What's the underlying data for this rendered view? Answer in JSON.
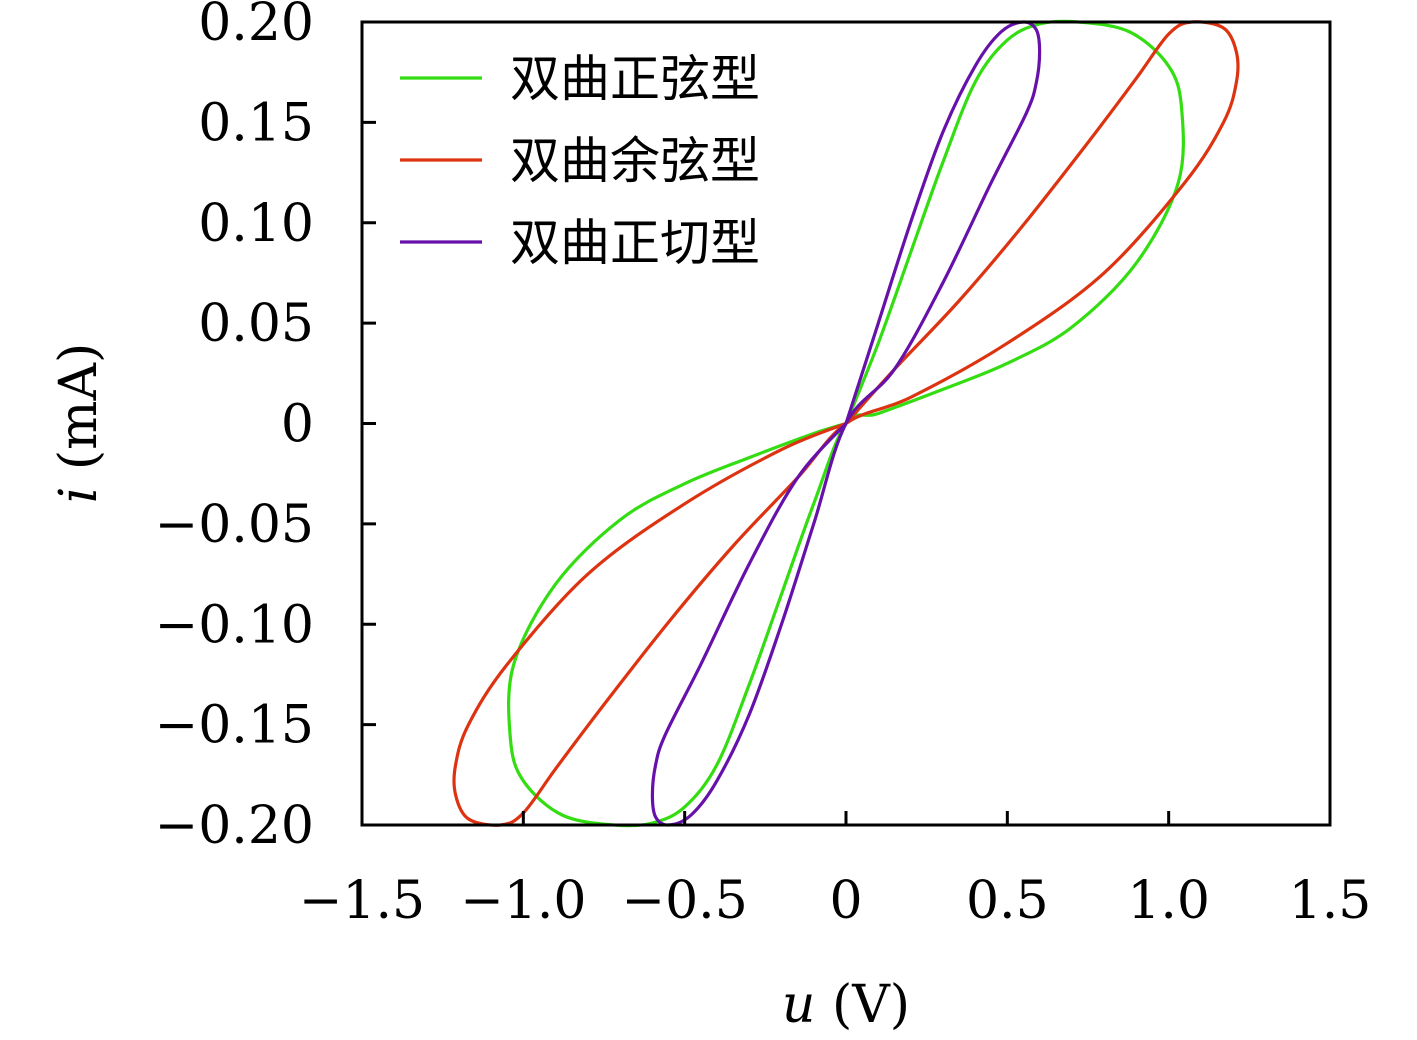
{
  "chart_data": {
    "type": "line",
    "xlabel_var": "u",
    "xlabel_unit": " (V)",
    "ylabel_var": "i",
    "ylabel_unit": " (mA)",
    "xlim": [
      -1.5,
      1.5
    ],
    "ylim": [
      -0.2,
      0.2
    ],
    "x_ticks": [
      -1.5,
      -1.0,
      -0.5,
      0,
      0.5,
      1.0,
      1.5
    ],
    "x_tick_labels": [
      "−1.5",
      "−1.0",
      "−0.5",
      "0",
      "0.5",
      "1.0",
      "1.5"
    ],
    "y_ticks": [
      0.2,
      0.15,
      0.1,
      0.05,
      0,
      -0.05,
      -0.1,
      -0.15,
      -0.2
    ],
    "y_tick_labels": [
      "0.20",
      "0.15",
      "0.10",
      "0.05",
      "0",
      "−0.05",
      "−0.10",
      "−0.15",
      "−0.20"
    ],
    "grid": false,
    "legend_position": "top-left",
    "series": [
      {
        "name": "双曲正弦型",
        "color": "#33dd11",
        "points": [
          [
            0,
            0
          ],
          [
            0.1,
            0.04
          ],
          [
            0.2,
            0.085
          ],
          [
            0.3,
            0.13
          ],
          [
            0.4,
            0.17
          ],
          [
            0.5,
            0.191
          ],
          [
            0.6,
            0.199
          ],
          [
            0.72,
            0.2
          ],
          [
            0.88,
            0.195
          ],
          [
            1.0,
            0.178
          ],
          [
            1.04,
            0.157
          ],
          [
            1.03,
            0.12
          ],
          [
            0.9,
            0.08
          ],
          [
            0.7,
            0.048
          ],
          [
            0.5,
            0.03
          ],
          [
            0.3,
            0.017
          ],
          [
            0.1,
            0.005
          ],
          [
            0,
            0
          ],
          [
            -0.1,
            -0.04
          ],
          [
            -0.2,
            -0.085
          ],
          [
            -0.3,
            -0.13
          ],
          [
            -0.4,
            -0.17
          ],
          [
            -0.5,
            -0.191
          ],
          [
            -0.6,
            -0.199
          ],
          [
            -0.72,
            -0.2
          ],
          [
            -0.88,
            -0.195
          ],
          [
            -1.0,
            -0.178
          ],
          [
            -1.04,
            -0.157
          ],
          [
            -1.03,
            -0.12
          ],
          [
            -0.9,
            -0.08
          ],
          [
            -0.7,
            -0.048
          ],
          [
            -0.5,
            -0.03
          ],
          [
            -0.3,
            -0.017
          ],
          [
            -0.1,
            -0.005
          ],
          [
            0,
            0
          ]
        ]
      },
      {
        "name": "双曲余弦型",
        "color": "#dd3311",
        "points": [
          [
            0,
            0
          ],
          [
            0.15,
            0.027
          ],
          [
            0.35,
            0.061
          ],
          [
            0.55,
            0.099
          ],
          [
            0.75,
            0.14
          ],
          [
            0.9,
            0.172
          ],
          [
            1.0,
            0.194
          ],
          [
            1.07,
            0.2
          ],
          [
            1.17,
            0.197
          ],
          [
            1.21,
            0.185
          ],
          [
            1.21,
            0.17
          ],
          [
            1.17,
            0.15
          ],
          [
            1.05,
            0.12
          ],
          [
            0.8,
            0.075
          ],
          [
            0.5,
            0.04
          ],
          [
            0.2,
            0.013
          ],
          [
            0,
            0
          ],
          [
            -0.15,
            -0.027
          ],
          [
            -0.35,
            -0.061
          ],
          [
            -0.55,
            -0.099
          ],
          [
            -0.75,
            -0.14
          ],
          [
            -0.9,
            -0.172
          ],
          [
            -1.0,
            -0.194
          ],
          [
            -1.07,
            -0.2
          ],
          [
            -1.17,
            -0.197
          ],
          [
            -1.21,
            -0.185
          ],
          [
            -1.21,
            -0.17
          ],
          [
            -1.17,
            -0.15
          ],
          [
            -1.05,
            -0.12
          ],
          [
            -0.8,
            -0.075
          ],
          [
            -0.5,
            -0.04
          ],
          [
            -0.2,
            -0.013
          ],
          [
            0,
            0
          ]
        ]
      },
      {
        "name": "双曲正切型",
        "color": "#6611aa",
        "points": [
          [
            0,
            0
          ],
          [
            0.1,
            0.05
          ],
          [
            0.2,
            0.1
          ],
          [
            0.3,
            0.145
          ],
          [
            0.4,
            0.178
          ],
          [
            0.48,
            0.195
          ],
          [
            0.55,
            0.2
          ],
          [
            0.59,
            0.196
          ],
          [
            0.6,
            0.185
          ],
          [
            0.59,
            0.17
          ],
          [
            0.56,
            0.155
          ],
          [
            0.45,
            0.12
          ],
          [
            0.3,
            0.07
          ],
          [
            0.15,
            0.027
          ],
          [
            0,
            0
          ],
          [
            -0.1,
            -0.05
          ],
          [
            -0.2,
            -0.1
          ],
          [
            -0.3,
            -0.145
          ],
          [
            -0.4,
            -0.178
          ],
          [
            -0.48,
            -0.195
          ],
          [
            -0.55,
            -0.2
          ],
          [
            -0.59,
            -0.196
          ],
          [
            -0.6,
            -0.185
          ],
          [
            -0.59,
            -0.17
          ],
          [
            -0.56,
            -0.155
          ],
          [
            -0.45,
            -0.12
          ],
          [
            -0.3,
            -0.07
          ],
          [
            -0.15,
            -0.027
          ],
          [
            0,
            0
          ]
        ]
      }
    ]
  }
}
